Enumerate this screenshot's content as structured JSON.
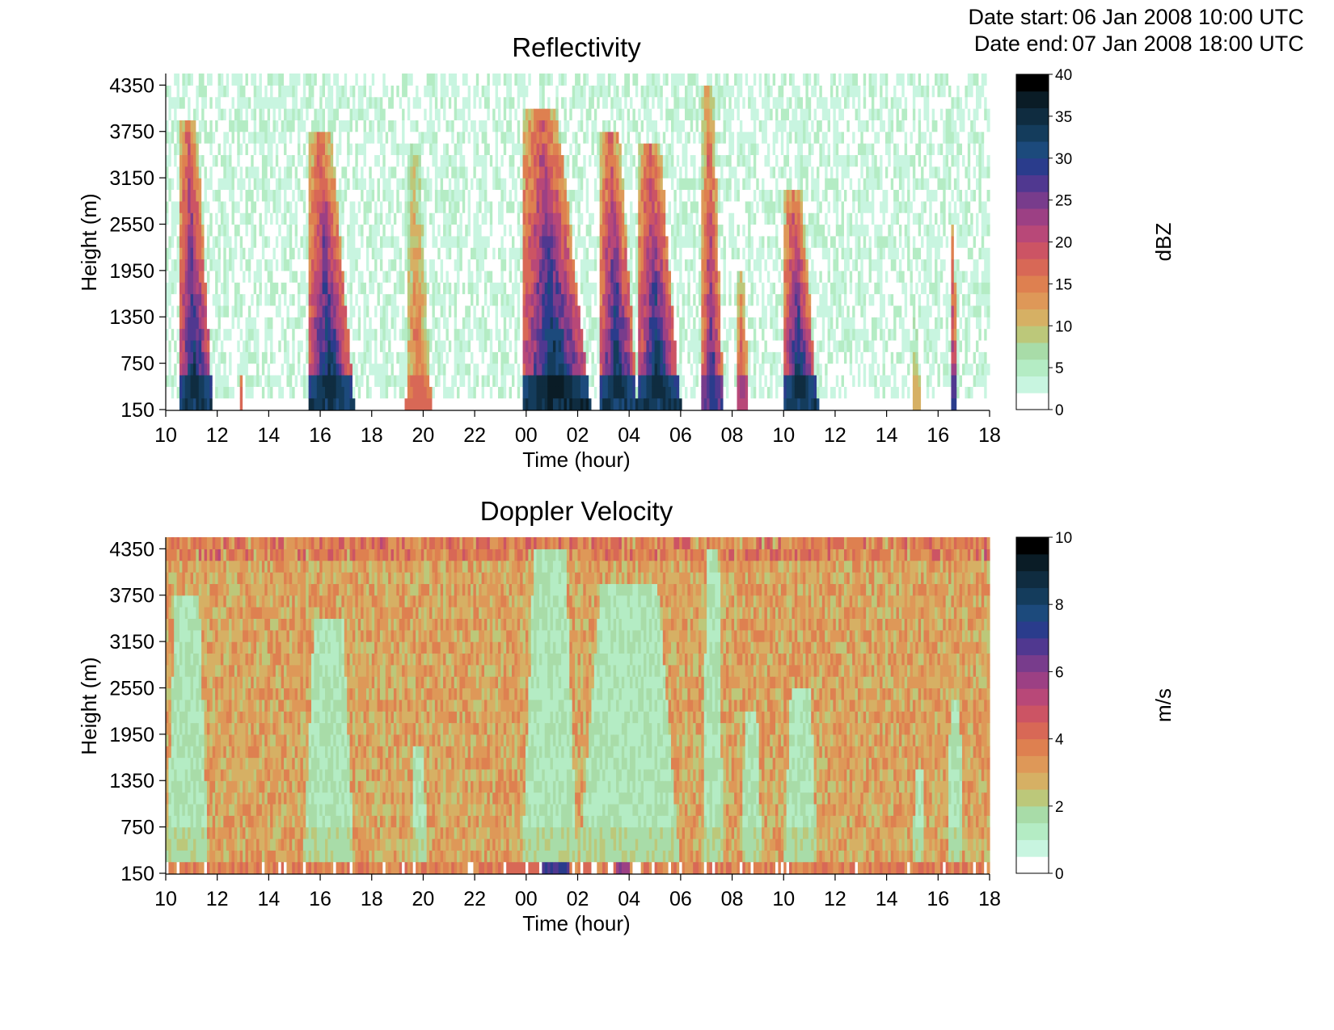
{
  "header": {
    "start_label": "Date start:",
    "start_value": "06 Jan 2008 10:00 UTC",
    "end_label": "Date end:",
    "end_value": "07 Jan 2008 18:00 UTC"
  },
  "chart_data": [
    {
      "type": "heatmap",
      "title": "Reflectivity",
      "xlabel": "Time (hour)",
      "ylabel": "Height (m)",
      "x_ticks": [
        "10",
        "12",
        "14",
        "16",
        "18",
        "20",
        "22",
        "00",
        "02",
        "04",
        "06",
        "08",
        "10",
        "12",
        "14",
        "16",
        "18"
      ],
      "xlim": [
        "06 Jan 2008 10:00",
        "07 Jan 2008 18:00"
      ],
      "y_ticks": [
        150,
        750,
        1350,
        1950,
        2550,
        3150,
        3750,
        4350
      ],
      "ylim": [
        150,
        4500
      ],
      "colorbar": {
        "label": "dBZ",
        "min": 0,
        "max": 40,
        "ticks": [
          0,
          5,
          10,
          15,
          20,
          25,
          30,
          35,
          40
        ]
      },
      "background_level": 3,
      "events": [
        {
          "start": "06 Jan 2008 10:30",
          "end": "06 Jan 2008 11:50",
          "top_m": 3900,
          "peak_dBZ": 36
        },
        {
          "start": "06 Jan 2008 12:50",
          "end": "06 Jan 2008 13:00",
          "top_m": 700,
          "peak_dBZ": 18
        },
        {
          "start": "06 Jan 2008 15:30",
          "end": "06 Jan 2008 17:20",
          "top_m": 3700,
          "peak_dBZ": 36
        },
        {
          "start": "06 Jan 2008 19:20",
          "end": "06 Jan 2008 20:20",
          "top_m": 3600,
          "peak_dBZ": 18
        },
        {
          "start": "06 Jan 2008 23:50",
          "end": "07 Jan 2008 02:30",
          "top_m": 4000,
          "peak_dBZ": 38
        },
        {
          "start": "07 Jan 2008 02:50",
          "end": "07 Jan 2008 04:20",
          "top_m": 3800,
          "peak_dBZ": 36
        },
        {
          "start": "07 Jan 2008 04:20",
          "end": "07 Jan 2008 06:00",
          "top_m": 3600,
          "peak_dBZ": 36
        },
        {
          "start": "07 Jan 2008 06:50",
          "end": "07 Jan 2008 07:40",
          "top_m": 4300,
          "peak_dBZ": 30
        },
        {
          "start": "07 Jan 2008 08:10",
          "end": "07 Jan 2008 08:40",
          "top_m": 2000,
          "peak_dBZ": 24
        },
        {
          "start": "07 Jan 2008 10:00",
          "end": "07 Jan 2008 11:20",
          "top_m": 3000,
          "peak_dBZ": 36
        },
        {
          "start": "07 Jan 2008 15:00",
          "end": "07 Jan 2008 15:20",
          "top_m": 1500,
          "peak_dBZ": 12
        },
        {
          "start": "07 Jan 2008 16:30",
          "end": "07 Jan 2008 16:45",
          "top_m": 2600,
          "peak_dBZ": 30
        }
      ]
    },
    {
      "type": "heatmap",
      "title": "Doppler Velocity",
      "xlabel": "Time (hour)",
      "ylabel": "Height (m)",
      "x_ticks": [
        "10",
        "12",
        "14",
        "16",
        "18",
        "20",
        "22",
        "00",
        "02",
        "04",
        "06",
        "08",
        "10",
        "12",
        "14",
        "16",
        "18"
      ],
      "xlim": [
        "06 Jan 2008 10:00",
        "07 Jan 2008 18:00"
      ],
      "y_ticks": [
        150,
        750,
        1350,
        1950,
        2550,
        3150,
        3750,
        4350
      ],
      "ylim": [
        150,
        4500
      ],
      "colorbar": {
        "label": "m/s",
        "min": 0,
        "max": 10,
        "ticks": [
          0,
          2,
          4,
          6,
          8,
          10
        ]
      },
      "background_level": 3,
      "events": [
        {
          "start": "06 Jan 2008 10:00",
          "end": "06 Jan 2008 11:40",
          "top_m": 3800,
          "level": 1.5
        },
        {
          "start": "06 Jan 2008 15:20",
          "end": "06 Jan 2008 17:20",
          "top_m": 3500,
          "level": 1.5
        },
        {
          "start": "06 Jan 2008 19:30",
          "end": "06 Jan 2008 20:10",
          "top_m": 1800,
          "level": 1.5
        },
        {
          "start": "06 Jan 2008 23:50",
          "end": "07 Jan 2008 02:00",
          "top_m": 4400,
          "level": 1.5
        },
        {
          "start": "07 Jan 2008 02:00",
          "end": "07 Jan 2008 06:00",
          "top_m": 3900,
          "level": 1.5
        },
        {
          "start": "07 Jan 2008 06:50",
          "end": "07 Jan 2008 07:40",
          "top_m": 4400,
          "level": 1.5
        },
        {
          "start": "07 Jan 2008 08:20",
          "end": "07 Jan 2008 09:10",
          "top_m": 2200,
          "level": 1.5
        },
        {
          "start": "07 Jan 2008 10:00",
          "end": "07 Jan 2008 11:20",
          "top_m": 2600,
          "level": 1.5
        },
        {
          "start": "07 Jan 2008 15:00",
          "end": "07 Jan 2008 15:30",
          "top_m": 1500,
          "level": 1.5
        },
        {
          "start": "07 Jan 2008 16:20",
          "end": "07 Jan 2008 17:00",
          "top_m": 2400,
          "level": 1.5
        }
      ],
      "low_level_peaks": [
        {
          "start": "07 Jan 2008 00:40",
          "end": "07 Jan 2008 01:40",
          "level": 7
        },
        {
          "start": "07 Jan 2008 03:30",
          "end": "07 Jan 2008 04:00",
          "level": 6
        }
      ]
    }
  ]
}
